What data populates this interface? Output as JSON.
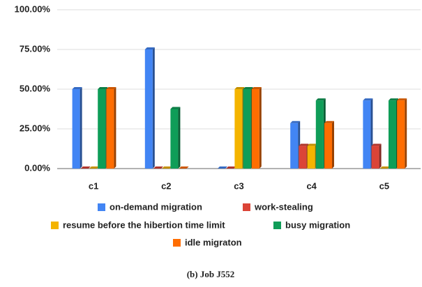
{
  "chart_data": {
    "type": "bar",
    "categories": [
      "c1",
      "c2",
      "c3",
      "c4",
      "c5"
    ],
    "series": [
      {
        "name": "on-demand migration",
        "color": "#4285f4",
        "values": [
          50,
          75,
          0,
          28.6,
          42.9
        ]
      },
      {
        "name": "work-stealing",
        "color": "#db4437",
        "values": [
          0,
          0,
          0,
          14.3,
          14.3
        ]
      },
      {
        "name": "resume before the hibertion time limit",
        "color": "#f4b400",
        "values": [
          0,
          0,
          50,
          14.3,
          0
        ]
      },
      {
        "name": "busy migration",
        "color": "#0f9d58",
        "values": [
          50,
          37.5,
          50,
          42.9,
          42.9
        ]
      },
      {
        "name": "idle migraton",
        "color": "#ff6d01",
        "values": [
          50,
          0,
          50,
          28.6,
          42.9
        ]
      }
    ],
    "ylim": [
      0,
      100
    ],
    "yticks": [
      {
        "value": 0,
        "label": "0.00%"
      },
      {
        "value": 25,
        "label": "25.00%"
      },
      {
        "value": 50,
        "label": "50.00%"
      },
      {
        "value": 75,
        "label": "75.00%"
      },
      {
        "value": 100,
        "label": "100.00%"
      }
    ],
    "grid": true,
    "caption": "(b) Job J552"
  }
}
